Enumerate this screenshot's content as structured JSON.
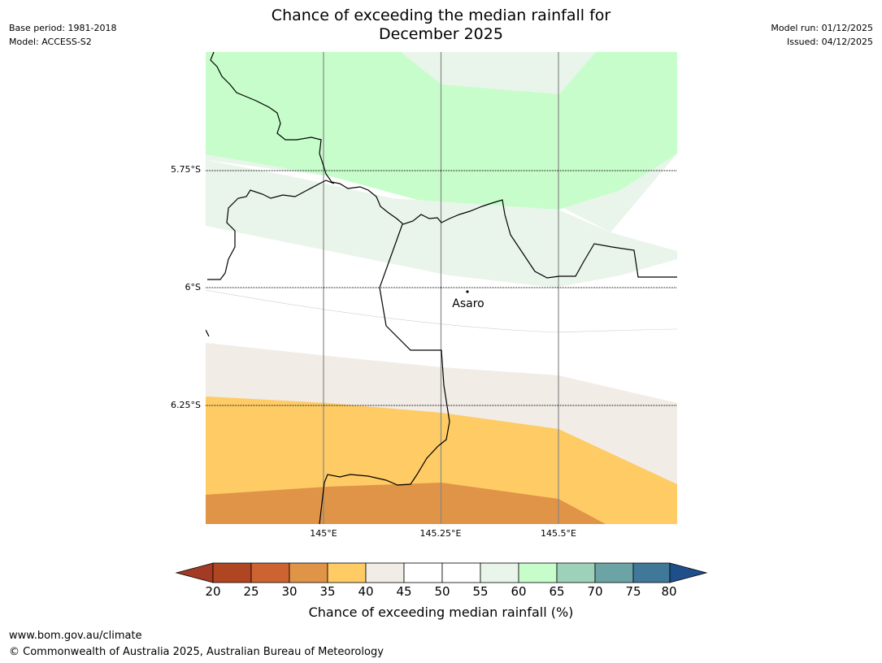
{
  "header": {
    "title_line1": "Chance of exceeding the median rainfall for",
    "title_line2": "December 2025",
    "base_period": "Base period: 1981-2018",
    "model": "Model: ACCESS-S2",
    "model_run": "Model run: 01/12/2025",
    "issued": "Issued: 04/12/2025"
  },
  "map": {
    "latitude_labels": [
      "5.75°S",
      "6°S",
      "6.25°S"
    ],
    "longitude_labels": [
      "145°E",
      "145.25°E",
      "145.5°E"
    ],
    "place_label": "Asaro"
  },
  "colorbar": {
    "ticks": [
      "20",
      "25",
      "30",
      "35",
      "40",
      "45",
      "50",
      "55",
      "60",
      "65",
      "70",
      "75",
      "80"
    ],
    "title": "Chance of exceeding median rainfall (%)",
    "colors": {
      "under": "#a23a24",
      "20-25": "#b04522",
      "25-30": "#cc6330",
      "30-35": "#e09447",
      "35-40": "#fecb65",
      "40-45": "#f1ece6",
      "45-50": "#ffffff",
      "50-55": "#ffffff",
      "55-60": "#e9f5ea",
      "60-65": "#c7fdcb",
      "65-70": "#9ed1b9",
      "70-75": "#6ca4a6",
      "75-80": "#3f7899",
      "over": "#1f4f8a"
    }
  },
  "footer": {
    "url": "www.bom.gov.au/climate",
    "copyright": "© Commonwealth of Australia 2025, Australian Bureau of Meteorology"
  }
}
